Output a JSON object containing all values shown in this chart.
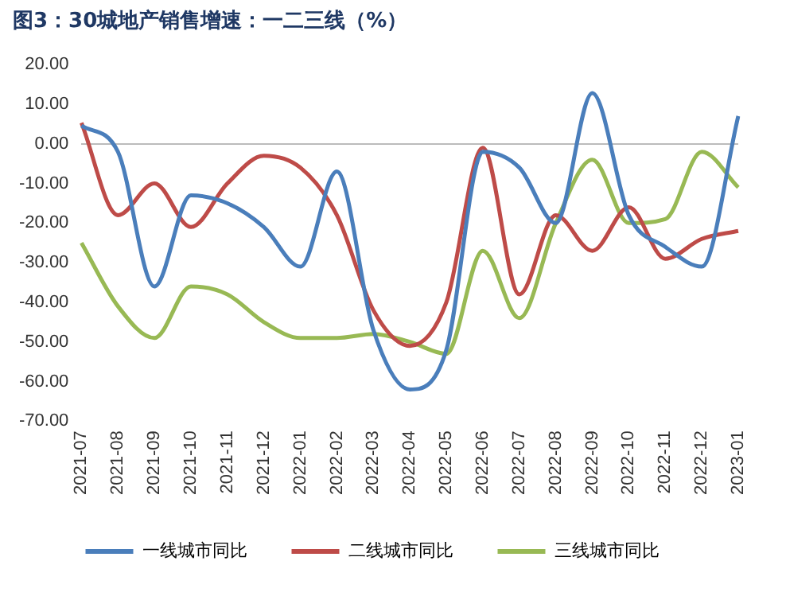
{
  "chart_data": {
    "type": "line",
    "title": "图3：30城地产销售增速：一二三线（%）",
    "categories": [
      "2021-07",
      "2021-08",
      "2021-09",
      "2021-10",
      "2021-11",
      "2021-12",
      "2022-01",
      "2022-02",
      "2022-03",
      "2022-04",
      "2022-05",
      "2022-06",
      "2022-07",
      "2022-08",
      "2022-09",
      "2022-10",
      "2022-11",
      "2022-12",
      "2023-01"
    ],
    "series": [
      {
        "name": "一线城市同比",
        "color": "#4a7ebb",
        "values": [
          4.6,
          -2,
          -36,
          -13,
          -15,
          -21,
          -31,
          -7,
          -47,
          -62,
          -52,
          -2,
          -6,
          -20,
          12.8,
          -18,
          -26,
          -31,
          7
        ]
      },
      {
        "name": "二线城市同比",
        "color": "#be4b48",
        "values": [
          5.3,
          -18,
          -10,
          -21,
          -10,
          -3,
          -6,
          -18,
          -42,
          -51,
          -40,
          -1,
          -38,
          -18,
          -27,
          -16,
          -29,
          -24,
          -22
        ]
      },
      {
        "name": "三线城市同比",
        "color": "#98b954",
        "values": [
          -25,
          -41,
          -49,
          -36,
          -38,
          -45,
          -49,
          -49,
          -48,
          -50,
          -53,
          -27,
          -44,
          -20,
          -4,
          -20,
          -19,
          -2,
          -11
        ]
      }
    ],
    "ylim": [
      -70,
      20
    ],
    "yticks": [
      {
        "value": 20,
        "label": "20.00"
      },
      {
        "value": 10,
        "label": "10.00"
      },
      {
        "value": 0,
        "label": "0.00"
      },
      {
        "value": -10,
        "label": "-10.00"
      },
      {
        "value": -20,
        "label": "-20.00"
      },
      {
        "value": -30,
        "label": "-30.00"
      },
      {
        "value": -40,
        "label": "-40.00"
      },
      {
        "value": -50,
        "label": "-50.00"
      },
      {
        "value": -60,
        "label": "-60.00"
      },
      {
        "value": -70,
        "label": "-70.00"
      }
    ],
    "legend": "bottom",
    "marker": "none",
    "line_style": "solid"
  }
}
